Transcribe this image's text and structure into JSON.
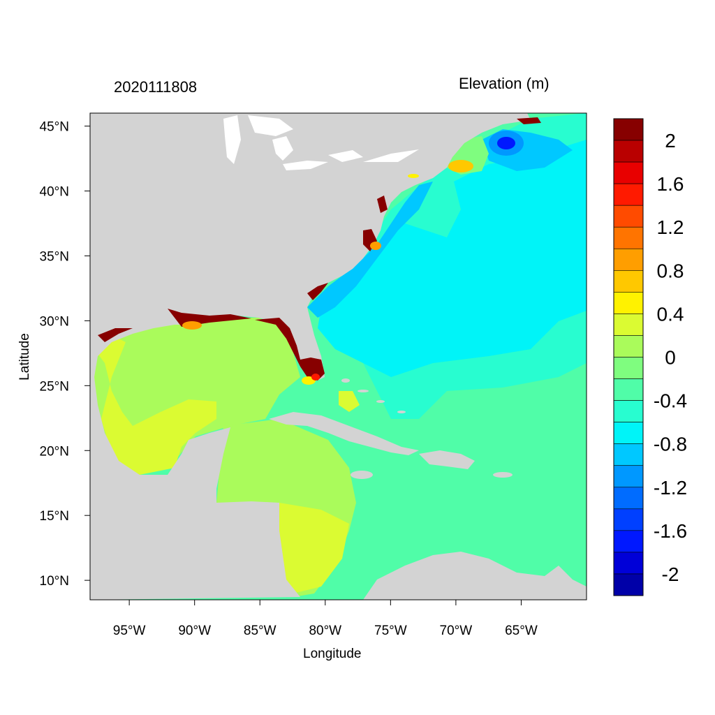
{
  "titles": {
    "left": "2020111808",
    "right": "Elevation (m)"
  },
  "axes": {
    "xlabel": "Longitude",
    "ylabel": "Latitude",
    "x_ticks": [
      {
        "lon": -95,
        "label": "95°W"
      },
      {
        "lon": -90,
        "label": "90°W"
      },
      {
        "lon": -85,
        "label": "85°W"
      },
      {
        "lon": -80,
        "label": "80°W"
      },
      {
        "lon": -75,
        "label": "75°W"
      },
      {
        "lon": -70,
        "label": "70°W"
      },
      {
        "lon": -65,
        "label": "65°W"
      }
    ],
    "y_ticks": [
      {
        "lat": 45,
        "label": "45°N"
      },
      {
        "lat": 40,
        "label": "40°N"
      },
      {
        "lat": 35,
        "label": "35°N"
      },
      {
        "lat": 30,
        "label": "30°N"
      },
      {
        "lat": 25,
        "label": "25°N"
      },
      {
        "lat": 20,
        "label": "20°N"
      },
      {
        "lat": 15,
        "label": "15°N"
      },
      {
        "lat": 10,
        "label": "10°N"
      }
    ],
    "lon_range": [
      -98,
      -60
    ],
    "lat_range": [
      8.5,
      46
    ]
  },
  "colorbar": {
    "colors": [
      "#870000",
      "#b90000",
      "#e80000",
      "#ff1a00",
      "#ff4b00",
      "#ff7400",
      "#ff9e00",
      "#ffc800",
      "#fff200",
      "#dbfb32",
      "#aafb5b",
      "#7ffd7f",
      "#50fda8",
      "#28fdd0",
      "#00f4f8",
      "#00c8ff",
      "#0098ff",
      "#006cff",
      "#0040ff",
      "#0018ff",
      "#0000d8",
      "#0000a8"
    ],
    "labels": [
      "2",
      "1.6",
      "1.2",
      "0.8",
      "0.4",
      "0",
      "-0.4",
      "-0.8",
      "-1.2",
      "-1.6",
      "-2"
    ]
  },
  "map": {
    "land_color": "#d3d3d3",
    "lake_color": "#ffffff"
  }
}
